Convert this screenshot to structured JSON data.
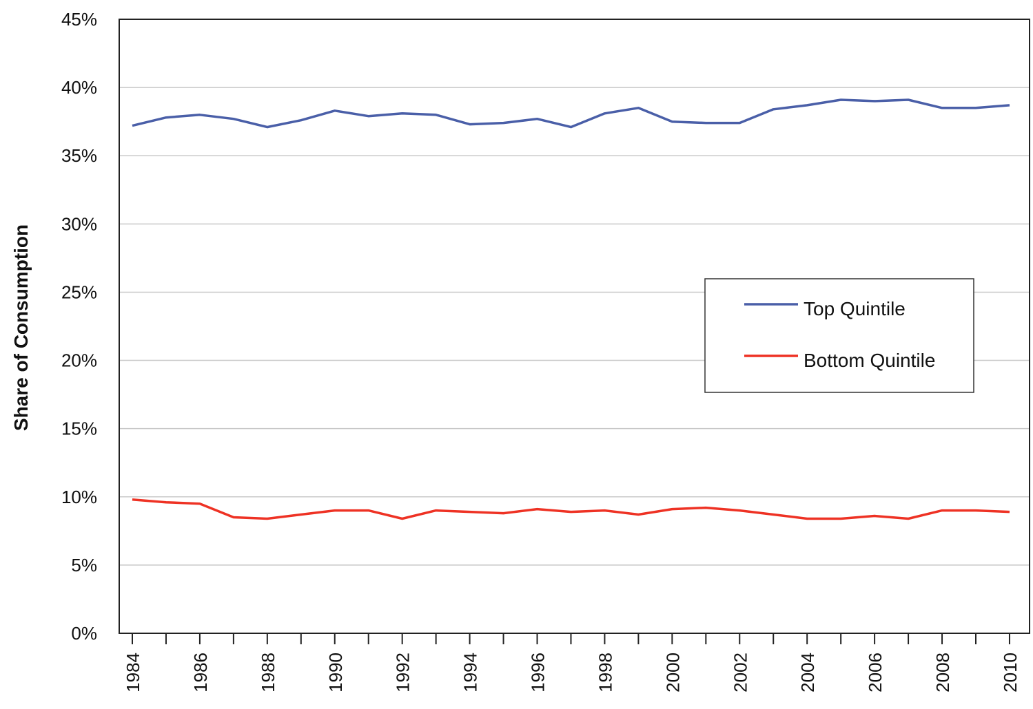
{
  "chart_data": {
    "type": "line",
    "ylabel": "Share of Consumption",
    "ylim": [
      0,
      45
    ],
    "yticks": [
      "0%",
      "5%",
      "10%",
      "15%",
      "20%",
      "25%",
      "30%",
      "35%",
      "40%",
      "45%"
    ],
    "ytick_values": [
      0,
      5,
      10,
      15,
      20,
      25,
      30,
      35,
      40,
      45
    ],
    "x": [
      1984,
      1985,
      1986,
      1987,
      1988,
      1989,
      1990,
      1991,
      1992,
      1993,
      1994,
      1995,
      1996,
      1997,
      1998,
      1999,
      2000,
      2001,
      2002,
      2003,
      2004,
      2005,
      2006,
      2007,
      2008,
      2009,
      2010
    ],
    "xtick_labels": [
      "1984",
      "1986",
      "1988",
      "1990",
      "1992",
      "1994",
      "1996",
      "1998",
      "2000",
      "2002",
      "2004",
      "2006",
      "2008",
      "2010"
    ],
    "grid": true,
    "legend_position": "right",
    "series": [
      {
        "name": "Top Quintile",
        "color": "#4a5fa8",
        "values": [
          37.2,
          37.8,
          38.0,
          37.7,
          37.1,
          37.6,
          38.3,
          37.9,
          38.1,
          38.0,
          37.3,
          37.4,
          37.7,
          37.1,
          38.1,
          38.5,
          37.5,
          37.4,
          37.4,
          38.4,
          38.7,
          39.1,
          39.0,
          39.1,
          38.5,
          38.5,
          38.7
        ]
      },
      {
        "name": "Bottom Quintile",
        "color": "#ee3224",
        "values": [
          9.8,
          9.6,
          9.5,
          8.5,
          8.4,
          8.7,
          9.0,
          9.0,
          8.4,
          9.0,
          8.9,
          8.8,
          9.1,
          8.9,
          9.0,
          8.7,
          9.1,
          9.2,
          9.0,
          8.7,
          8.4,
          8.4,
          8.6,
          8.4,
          9.0,
          9.0,
          8.9
        ]
      }
    ]
  }
}
